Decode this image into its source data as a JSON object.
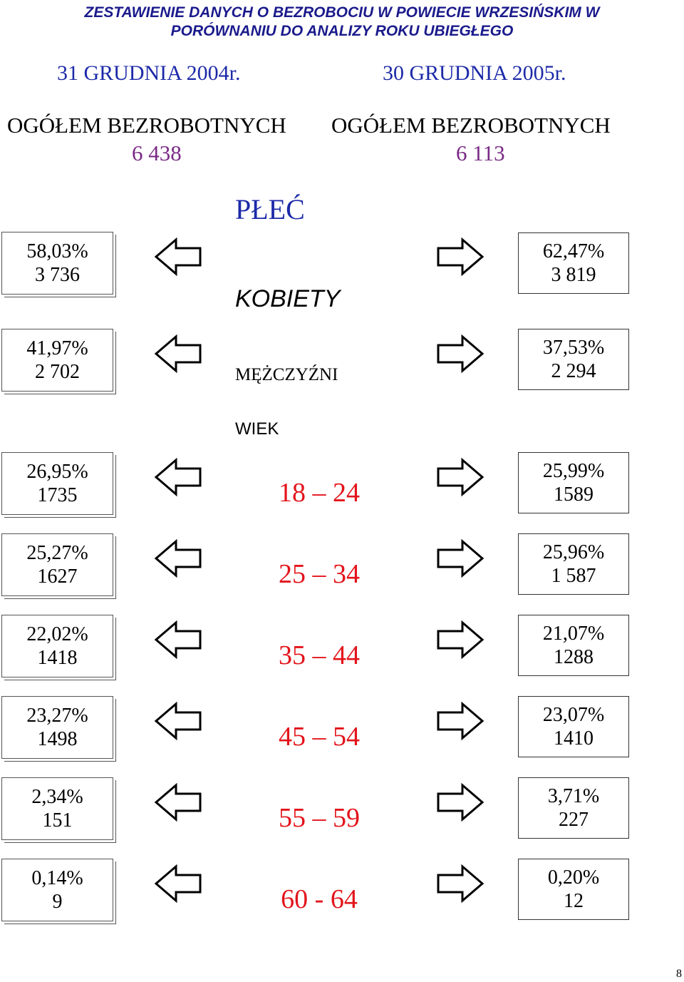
{
  "header": {
    "title_line1": "ZESTAWIENIE DANYCH O BEZROBOCIU W POWIECIE WRZESIŃSKIM W",
    "title_line2": "PORÓWNANIU DO ANALIZY ROKU UBIEGŁEGO"
  },
  "dates": {
    "left": "31 GRUDNIA 2004r.",
    "right": "30 GRUDNIA 2005r."
  },
  "totals": {
    "left_label": "OGÓŁEM BEZROBOTNYCH",
    "left_value": "6 438",
    "right_label": "OGÓŁEM BEZROBOTNYCH",
    "right_value": "6 113"
  },
  "sections": {
    "gender": "PŁEĆ",
    "age": "WIEK"
  },
  "gender_rows": [
    {
      "label": "KOBIETY",
      "left_pct": "58,03%",
      "left_count": "3 736",
      "right_pct": "62,47%",
      "right_count": "3 819"
    },
    {
      "label": "MĘŻCZYŹNI",
      "left_pct": "41,97%",
      "left_count": "2 702",
      "right_pct": "37,53%",
      "right_count": "2 294"
    }
  ],
  "age_rows": [
    {
      "label": "18 – 24",
      "left_pct": "26,95%",
      "left_count": "1735",
      "right_pct": "25,99%",
      "right_count": "1589"
    },
    {
      "label": "25 – 34",
      "left_pct": "25,27%",
      "left_count": "1627",
      "right_pct": "25,96%",
      "right_count": "1 587"
    },
    {
      "label": "35 – 44",
      "left_pct": "22,02%",
      "left_count": "1418",
      "right_pct": "21,07%",
      "right_count": "1288"
    },
    {
      "label": "45 – 54",
      "left_pct": "23,27%",
      "left_count": "1498",
      "right_pct": "23,07%",
      "right_count": "1410"
    },
    {
      "label": "55 – 59",
      "left_pct": "2,34%",
      "left_count": "151",
      "right_pct": "3,71%",
      "right_count": "227"
    },
    {
      "label": "60 - 64",
      "left_pct": "0,14%",
      "left_count": "9",
      "right_pct": "0,20%",
      "right_count": "12"
    }
  ],
  "page_number": "8",
  "colors": {
    "title": "#1a1a8c",
    "date": "#1c2aa8",
    "total_value": "#7a2a86",
    "age_label": "#e3141b"
  }
}
